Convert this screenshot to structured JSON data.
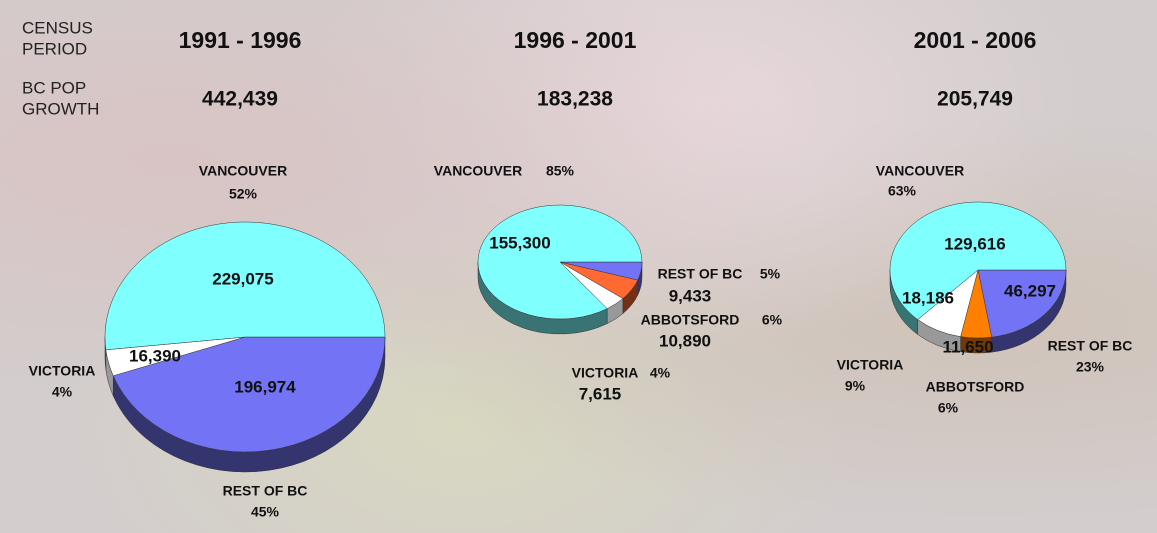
{
  "header": {
    "period_label": [
      "CENSUS",
      "PERIOD"
    ],
    "growth_label": [
      "BC POP",
      "GROWTH"
    ]
  },
  "chart_data": [
    {
      "type": "pie",
      "title": "1991 - 1996",
      "subtitle": "442,439",
      "categories": [
        "REST OF BC",
        "VICTORIA",
        "VANCOUVER"
      ],
      "values": [
        196974,
        16390,
        229075
      ],
      "value_labels": [
        "196,974",
        "16,390",
        "229,075"
      ],
      "percent_labels": [
        "45%",
        "4%",
        "52%"
      ],
      "colors": [
        "#7373f5",
        "#ffffff",
        "#80ffff"
      ]
    },
    {
      "type": "pie",
      "title": "1996 - 2001",
      "subtitle": "183,238",
      "categories": [
        "REST OF BC",
        "ABBOTSFORD",
        "VICTORIA",
        "VANCOUVER"
      ],
      "values": [
        9433,
        10890,
        7615,
        155300
      ],
      "value_labels": [
        "9,433",
        "10,890",
        "7,615",
        "155,300"
      ],
      "percent_labels": [
        "5%",
        "6%",
        "4%",
        "85%"
      ],
      "colors": [
        "#7373f5",
        "#ff6a33",
        "#ffffff",
        "#80ffff"
      ]
    },
    {
      "type": "pie",
      "title": "2001 - 2006",
      "subtitle": "205,749",
      "categories": [
        "REST OF BC",
        "ABBOTSFORD",
        "VICTORIA",
        "VANCOUVER"
      ],
      "values": [
        46297,
        11650,
        18186,
        129616
      ],
      "value_labels": [
        "46,297",
        "11,650",
        "18,186",
        "129,616"
      ],
      "percent_labels": [
        "23%",
        "6%",
        "9%",
        "63%"
      ],
      "colors": [
        "#7373f5",
        "#ff7f00",
        "#ffffff",
        "#80ffff"
      ]
    }
  ]
}
